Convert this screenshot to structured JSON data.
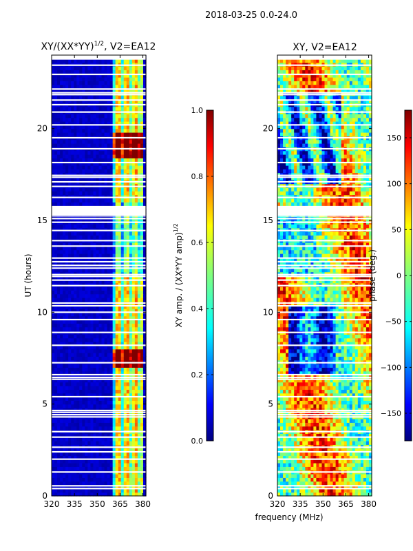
{
  "figure": {
    "suptitle": "2018-03-25 0.0-24.0",
    "common_xlabel": "frequency (MHz)"
  },
  "colors": {
    "text": "#000000",
    "jet": [
      "#00007f",
      "#0000ff",
      "#007fff",
      "#00ffff",
      "#7fff7f",
      "#ffff00",
      "#ff7f00",
      "#ff0000",
      "#7f0000"
    ]
  },
  "chart_data": [
    {
      "type": "heatmap",
      "title": "XY/(XX*YY)",
      "title_sup": "1/2",
      "title_suffix": ", V2=EA12",
      "xlabel": "",
      "ylabel": "UT (hours)",
      "xlim": [
        320,
        382
      ],
      "ylim": [
        0,
        24
      ],
      "xticks": [
        320,
        335,
        350,
        365,
        380
      ],
      "yticks": [
        0,
        5,
        10,
        15,
        20
      ],
      "value_range": [
        0,
        1
      ],
      "colorbar": {
        "label": "XY amp. / (XX*YY amp)",
        "label_sup": "1/2",
        "ticks": [
          "0.0",
          "0.2",
          "0.4",
          "0.6",
          "0.8",
          "1.0"
        ],
        "tick_values": [
          0,
          0.2,
          0.4,
          0.6,
          0.8,
          1.0
        ],
        "range": [
          0,
          1
        ]
      },
      "description_values": {
        "background_amplitude": 0.05,
        "high_amplitude_band_mhz": [
          361,
          380
        ],
        "peak_hours": [
          7,
          8,
          18.5,
          19.5
        ]
      }
    },
    {
      "type": "heatmap",
      "title": "XY, V2=EA12",
      "xlabel": "",
      "ylabel": "",
      "xlim": [
        320,
        382
      ],
      "ylim": [
        0,
        24
      ],
      "xticks": [
        320,
        335,
        350,
        365,
        380
      ],
      "yticks": [
        0,
        5,
        10,
        15,
        20
      ],
      "value_range": [
        -180,
        180
      ],
      "colorbar": {
        "label": "phase (deg.)",
        "ticks": [
          "−150",
          "−100",
          "−50",
          "0",
          "50",
          "100",
          "150"
        ],
        "tick_values": [
          -150,
          -100,
          -50,
          0,
          50,
          100,
          150
        ],
        "range": [
          -180,
          180
        ]
      }
    }
  ],
  "gaps_hours": [
    0.4,
    0.55,
    1.3,
    2.0,
    2.4,
    2.65,
    3.2,
    3.5,
    4.3,
    4.42,
    4.55,
    4.65,
    5.4,
    6.35,
    6.45,
    6.6,
    7.25,
    8.2,
    8.9,
    9.6,
    10.0,
    10.35,
    10.5,
    11.45,
    11.75,
    11.95,
    12.05,
    12.4,
    12.55,
    12.75,
    12.95,
    13.6,
    13.9,
    14.45,
    14.9,
    15.1,
    15.25,
    15.35,
    15.45,
    15.55,
    15.65,
    15.75,
    16.25,
    16.85,
    17.1,
    17.35,
    17.45,
    18.15,
    18.9,
    19.5,
    20.2,
    20.9,
    21.3,
    21.55,
    21.85,
    21.95,
    22.15,
    22.95,
    23.45,
    23.95
  ]
}
